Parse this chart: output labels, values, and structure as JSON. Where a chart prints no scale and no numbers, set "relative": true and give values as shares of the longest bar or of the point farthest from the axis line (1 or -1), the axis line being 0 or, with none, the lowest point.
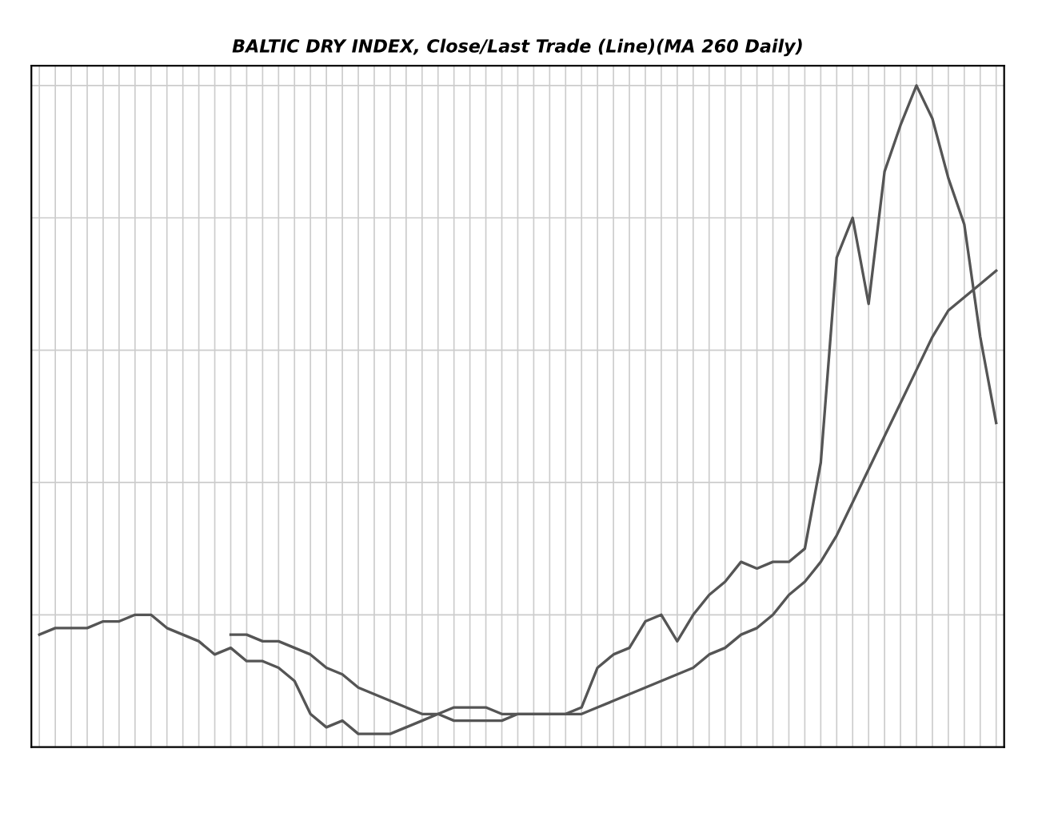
{
  "chart_data": {
    "type": "line",
    "title": "BALTIC DRY INDEX, Close/Last Trade (Line)(MA 260 Daily)",
    "relative": true,
    "grid": true,
    "categories": [
      null,
      null,
      null,
      null,
      null,
      null,
      null,
      null,
      null,
      null,
      null,
      null,
      null,
      null,
      null,
      null,
      null,
      null,
      null,
      null,
      null,
      null,
      null,
      null,
      null,
      null,
      null,
      null,
      null,
      null,
      null,
      null,
      null,
      null,
      null,
      null,
      null,
      null,
      null,
      null,
      null,
      null,
      null,
      null,
      null,
      null,
      null,
      null,
      null,
      null,
      null,
      null,
      null,
      null,
      null,
      null,
      null,
      null,
      null,
      null,
      null
    ],
    "series": [
      {
        "color": "#555555",
        "values": [
          0.17,
          0.18,
          0.18,
          0.18,
          0.19,
          0.19,
          0.2,
          0.2,
          0.18,
          0.17,
          0.16,
          0.14,
          0.15,
          0.13,
          0.13,
          0.12,
          0.1,
          0.05,
          0.03,
          0.04,
          0.02,
          0.02,
          0.02,
          0.03,
          0.04,
          0.05,
          0.06,
          0.06,
          0.06,
          0.05,
          0.05,
          0.05,
          0.05,
          0.05,
          0.06,
          0.12,
          0.14,
          0.15,
          0.19,
          0.2,
          0.16,
          0.2,
          0.23,
          0.25,
          0.28,
          0.27,
          0.28,
          0.28,
          0.3,
          0.43,
          0.74,
          0.8,
          0.67,
          0.87,
          0.94,
          1.0,
          0.95,
          0.86,
          0.79,
          0.62,
          0.49
        ]
      },
      {
        "color": "#555555",
        "values": [
          null,
          null,
          null,
          null,
          null,
          null,
          null,
          null,
          null,
          null,
          null,
          null,
          0.17,
          0.17,
          0.16,
          0.16,
          0.15,
          0.14,
          0.12,
          0.11,
          0.09,
          0.08,
          0.07,
          0.06,
          0.05,
          0.05,
          0.04,
          0.04,
          0.04,
          0.04,
          0.05,
          0.05,
          0.05,
          0.05,
          0.05,
          0.06,
          0.07,
          0.08,
          0.09,
          0.1,
          0.11,
          0.12,
          0.14,
          0.15,
          0.17,
          0.18,
          0.2,
          0.23,
          0.25,
          0.28,
          0.32,
          0.37,
          0.42,
          0.47,
          0.52,
          0.57,
          0.62,
          0.66,
          0.68,
          0.7,
          0.72
        ]
      }
    ]
  }
}
